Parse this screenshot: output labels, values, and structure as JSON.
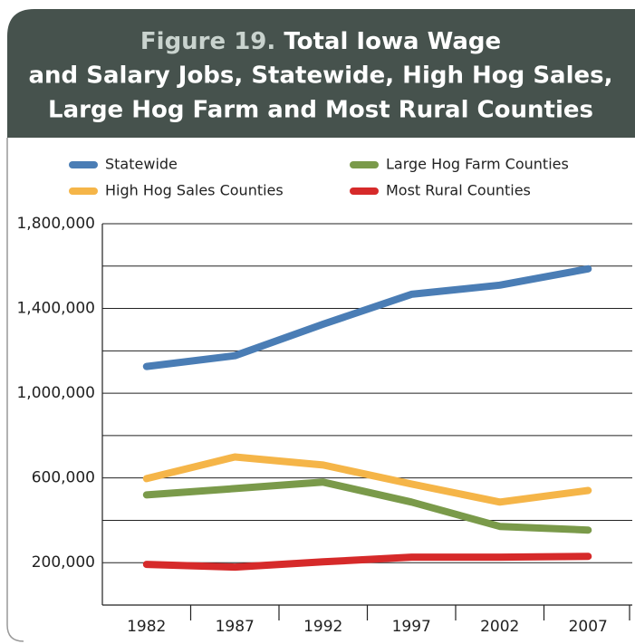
{
  "chart_data": {
    "type": "line",
    "figure_label": "Figure 19.",
    "title_lines": [
      "Total Iowa Wage",
      "and Salary Jobs, Statewide, High Hog Sales,",
      "Large Hog Farm and Most Rural Counties"
    ],
    "categories": [
      "1982",
      "1987",
      "1992",
      "1997",
      "2002",
      "2007"
    ],
    "series": [
      {
        "name": "Statewide",
        "color": "#4a7db5",
        "values": [
          1126000,
          1177000,
          1326000,
          1467000,
          1510000,
          1587000
        ]
      },
      {
        "name": "High Hog Sales Counties",
        "color": "#f5b548",
        "values": [
          597000,
          699000,
          661000,
          571000,
          486000,
          541000
        ]
      },
      {
        "name": "Large Hog Farm Counties",
        "color": "#7a9a4a",
        "values": [
          520000,
          550000,
          580000,
          486000,
          371000,
          354000
        ]
      },
      {
        "name": "Most Rural Counties",
        "color": "#d62a2a",
        "values": [
          192000,
          179000,
          204000,
          226000,
          226000,
          230000
        ]
      }
    ],
    "ylim": [
      0,
      1800000
    ],
    "yticks": [
      {
        "value": 200000,
        "label": "200,000"
      },
      {
        "value": 600000,
        "label": "600,000"
      },
      {
        "value": 1000000,
        "label": "1,000,000"
      },
      {
        "value": 1400000,
        "label": "1,400,000"
      },
      {
        "value": 1800000,
        "label": "1,800,000"
      }
    ],
    "minor_yticks": [
      400000,
      800000,
      1200000,
      1600000
    ],
    "grid": true
  }
}
